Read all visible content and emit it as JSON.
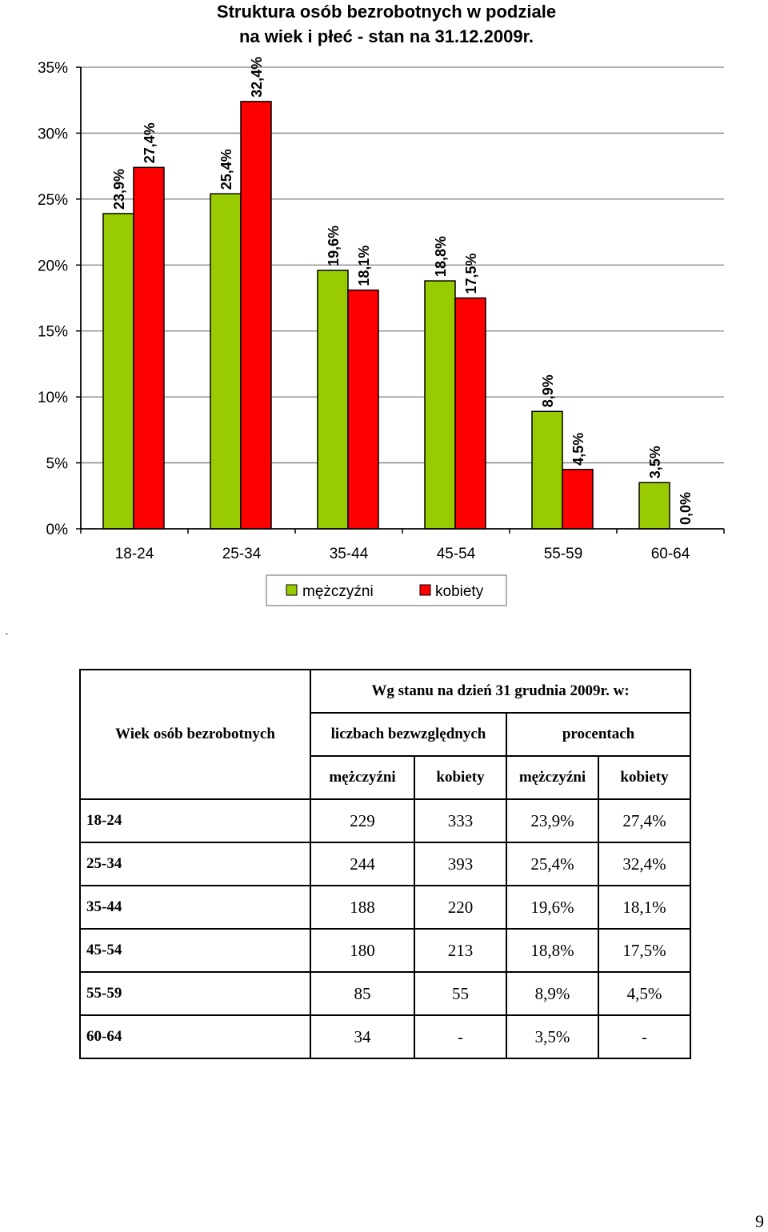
{
  "chart_data": {
    "type": "bar",
    "title": "Struktura osób bezrobotnych w podziale na wiek i płeć - stan na 31.12.2009r.",
    "title_lines": [
      "Struktura osób bezrobotnych w podziale",
      "na wiek i płeć - stan na 31.12.2009r."
    ],
    "categories": [
      "18-24",
      "25-34",
      "35-44",
      "45-54",
      "55-59",
      "60-64"
    ],
    "series": [
      {
        "name": "mężczyźni",
        "color": "#99cc00",
        "values": [
          23.9,
          25.4,
          19.6,
          18.8,
          8.9,
          3.5
        ],
        "labels": [
          "23,9%",
          "25,4%",
          "19,6%",
          "18,8%",
          "8,9%",
          "3,5%"
        ]
      },
      {
        "name": "kobiety",
        "color": "#ff0000",
        "values": [
          27.4,
          32.4,
          18.1,
          17.5,
          4.5,
          0.0
        ],
        "labels": [
          "27,4%",
          "32,4%",
          "18,1%",
          "17,5%",
          "4,5%",
          "0,0%"
        ]
      }
    ],
    "ylim": [
      0,
      35
    ],
    "yticks": [
      0,
      5,
      10,
      15,
      20,
      25,
      30,
      35
    ],
    "ytick_labels": [
      "0%",
      "5%",
      "10%",
      "15%",
      "20%",
      "25%",
      "30%",
      "35%"
    ],
    "xlabel": "",
    "ylabel": "",
    "grid": true,
    "legend_position": "bottom"
  },
  "backtick_mark": "`",
  "table": {
    "header_age": "Wiek osób bezrobotnych",
    "header_date": "Wg stanu na dzień 31 grudnia 2009r. w:",
    "header_absolute": "liczbach bezwzględnych",
    "header_percent": "procentach",
    "sub_headers": [
      "mężczyźni",
      "kobiety",
      "mężczyźni",
      "kobiety"
    ],
    "rows": [
      [
        "18-24",
        "229",
        "333",
        "23,9%",
        "27,4%"
      ],
      [
        "25-34",
        "244",
        "393",
        "25,4%",
        "32,4%"
      ],
      [
        "35-44",
        "188",
        "220",
        "19,6%",
        "18,1%"
      ],
      [
        "45-54",
        "180",
        "213",
        "18,8%",
        "17,5%"
      ],
      [
        "55-59",
        "85",
        "55",
        "8,9%",
        "4,5%"
      ],
      [
        "60-64",
        "34",
        "-",
        "3,5%",
        "-"
      ]
    ]
  },
  "page_number": "9"
}
